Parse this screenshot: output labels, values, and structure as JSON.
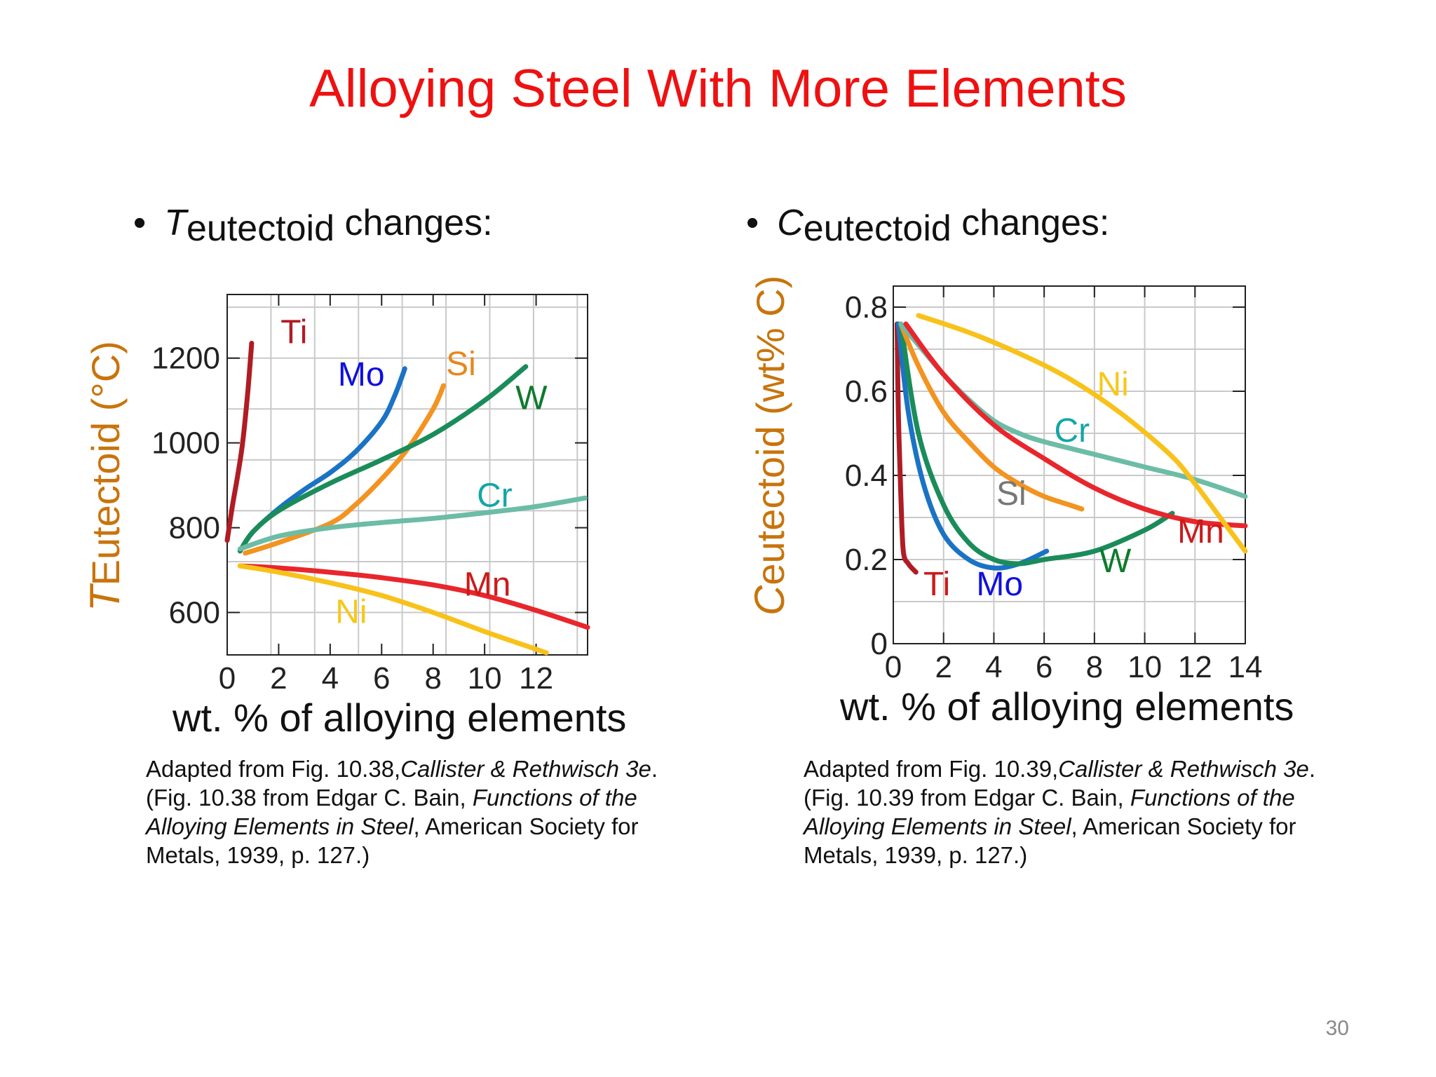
{
  "slide": {
    "title": "Alloying Steel With More Elements",
    "page_number": "30",
    "title_color": "#ee1111"
  },
  "left": {
    "bullet_symbol": "T",
    "bullet_sub": "eutectoid",
    "bullet_rest": "changes:",
    "ylabel_symbol": "T",
    "ylabel_rest": "Eutectoid (°C)",
    "xlabel": "wt. % of alloying elements",
    "caption": {
      "line1_a": "Adapted from Fig. 10.38,",
      "line1_b": "Callister & Rethwisch 3e",
      "line1_c": ".",
      "line2_a": "(Fig. 10.38 from Edgar C. Bain, ",
      "line2_b": "Functions of the",
      "line3_a": "Alloying Elements in Steel",
      "line3_b": ", American Society for",
      "line4": "Metals, 1939, p. 127.)"
    }
  },
  "right": {
    "bullet_symbol": "C",
    "bullet_sub": "eutectoid",
    "bullet_rest": "changes:",
    "ylabel_symbol": "C",
    "ylabel_rest": "eutectoid (wt% C)",
    "xlabel": "wt. % of alloying elements",
    "caption": {
      "line1_a": "Adapted from Fig. 10.39,",
      "line1_b": "Callister & Rethwisch 3e",
      "line1_c": ".",
      "line2_a": "(Fig. 10.39 from Edgar C. Bain, ",
      "line2_b": "Functions of the",
      "line3_a": "Alloying Elements in Steel",
      "line3_b": ", American Society for",
      "line4": "Metals, 1939, p. 127.)"
    }
  },
  "chart_data": [
    {
      "type": "line",
      "xlabel": "wt. % of alloying elements",
      "ylabel": "TEutectoid (°C)",
      "xlim": [
        0,
        14
      ],
      "ylim": [
        500,
        1350
      ],
      "xticks": [
        0,
        2,
        4,
        6,
        8,
        10,
        12
      ],
      "yticks": [
        600,
        800,
        1000,
        1200
      ],
      "grid": true,
      "series": [
        {
          "name": "Ti",
          "color": "#b01c24",
          "x": [
            0,
            0.2,
            0.4,
            0.6,
            0.8,
            0.95
          ],
          "y": [
            770,
            850,
            920,
            1000,
            1120,
            1235
          ]
        },
        {
          "name": "Mo",
          "color": "#1a73c4",
          "x": [
            0.5,
            1,
            2,
            3,
            4,
            5,
            6,
            6.5,
            6.9
          ],
          "y": [
            745,
            790,
            845,
            890,
            930,
            980,
            1050,
            1110,
            1175
          ]
        },
        {
          "name": "Si",
          "color": "#f39320",
          "x": [
            0.7,
            2,
            4,
            5,
            6,
            7,
            8,
            8.4
          ],
          "y": [
            740,
            765,
            810,
            855,
            915,
            985,
            1080,
            1135
          ]
        },
        {
          "name": "W",
          "color": "#1a8c5a",
          "x": [
            0.5,
            1,
            2,
            4,
            6,
            8,
            10,
            11.6
          ],
          "y": [
            745,
            790,
            840,
            905,
            960,
            1020,
            1100,
            1180
          ]
        },
        {
          "name": "Cr",
          "color": "#6cbca6",
          "x": [
            0.5,
            2,
            4,
            6,
            8,
            10,
            12,
            13.9
          ],
          "y": [
            750,
            780,
            800,
            812,
            822,
            835,
            850,
            870
          ]
        },
        {
          "name": "Mn",
          "color": "#e8262c",
          "x": [
            0.5,
            2,
            4,
            6,
            8,
            10,
            12,
            14
          ],
          "y": [
            710,
            705,
            695,
            682,
            665,
            640,
            605,
            565
          ]
        },
        {
          "name": "Ni",
          "color": "#f8c21b",
          "x": [
            0.5,
            2,
            4,
            6,
            8,
            10,
            11.2,
            12.4
          ],
          "y": [
            710,
            695,
            670,
            640,
            600,
            555,
            530,
            505
          ]
        }
      ],
      "label_colors": {
        "Ti": "#b01c24",
        "Mo": "#1010dd",
        "Si": "#e8871b",
        "W": "#0e7a2c",
        "Cr": "#13a6a6",
        "Mn": "#cc1a1a",
        "Ni": "#f6c81a"
      }
    },
    {
      "type": "line",
      "xlabel": "wt. % of alloying elements",
      "ylabel": "Ceutectoid (wt% C)",
      "xlim": [
        0,
        14
      ],
      "ylim": [
        0,
        0.85
      ],
      "xticks": [
        0,
        2,
        4,
        6,
        8,
        10,
        12,
        14
      ],
      "yticks": [
        0,
        0.2,
        0.4,
        0.6,
        0.8
      ],
      "grid": true,
      "series": [
        {
          "name": "Ti",
          "color": "#b01c24",
          "x": [
            0.15,
            0.2,
            0.3,
            0.4,
            0.6,
            0.9
          ],
          "y": [
            0.76,
            0.55,
            0.35,
            0.22,
            0.19,
            0.17
          ]
        },
        {
          "name": "Mo",
          "color": "#1a73c4",
          "x": [
            0.2,
            0.6,
            1.2,
            2,
            3,
            4,
            5,
            6.1
          ],
          "y": [
            0.76,
            0.55,
            0.38,
            0.26,
            0.2,
            0.18,
            0.19,
            0.22
          ]
        },
        {
          "name": "W",
          "color": "#1a8c5a",
          "x": [
            0.3,
            1,
            2,
            3,
            4,
            5,
            6,
            8,
            10,
            11.1
          ],
          "y": [
            0.76,
            0.5,
            0.33,
            0.24,
            0.2,
            0.19,
            0.2,
            0.22,
            0.27,
            0.31
          ]
        },
        {
          "name": "Si",
          "color": "#f39320",
          "x": [
            0.3,
            1,
            2,
            3,
            4,
            5,
            6,
            7,
            7.5
          ],
          "y": [
            0.76,
            0.66,
            0.55,
            0.48,
            0.42,
            0.38,
            0.35,
            0.33,
            0.32
          ]
        },
        {
          "name": "Cr",
          "color": "#6cbca6",
          "x": [
            0.3,
            1,
            2,
            3,
            4,
            5,
            6,
            8,
            10,
            12,
            14
          ],
          "y": [
            0.76,
            0.71,
            0.64,
            0.58,
            0.53,
            0.5,
            0.48,
            0.45,
            0.42,
            0.39,
            0.35
          ]
        },
        {
          "name": "Mn",
          "color": "#e8262c",
          "x": [
            0.5,
            2,
            4,
            6,
            8,
            10,
            12,
            14
          ],
          "y": [
            0.76,
            0.64,
            0.52,
            0.44,
            0.37,
            0.32,
            0.29,
            0.28
          ]
        },
        {
          "name": "Ni",
          "color": "#f8c21b",
          "x": [
            1,
            3,
            5,
            7,
            9,
            11,
            12,
            13,
            14
          ],
          "y": [
            0.78,
            0.74,
            0.69,
            0.63,
            0.55,
            0.45,
            0.38,
            0.3,
            0.22
          ]
        }
      ],
      "label_colors": {
        "Ti": "#cc1a1a",
        "Mo": "#1010dd",
        "Si": "#777777",
        "W": "#0e7a2c",
        "Cr": "#13a6a6",
        "Mn": "#cc1a1a",
        "Ni": "#f6c81a"
      }
    }
  ]
}
